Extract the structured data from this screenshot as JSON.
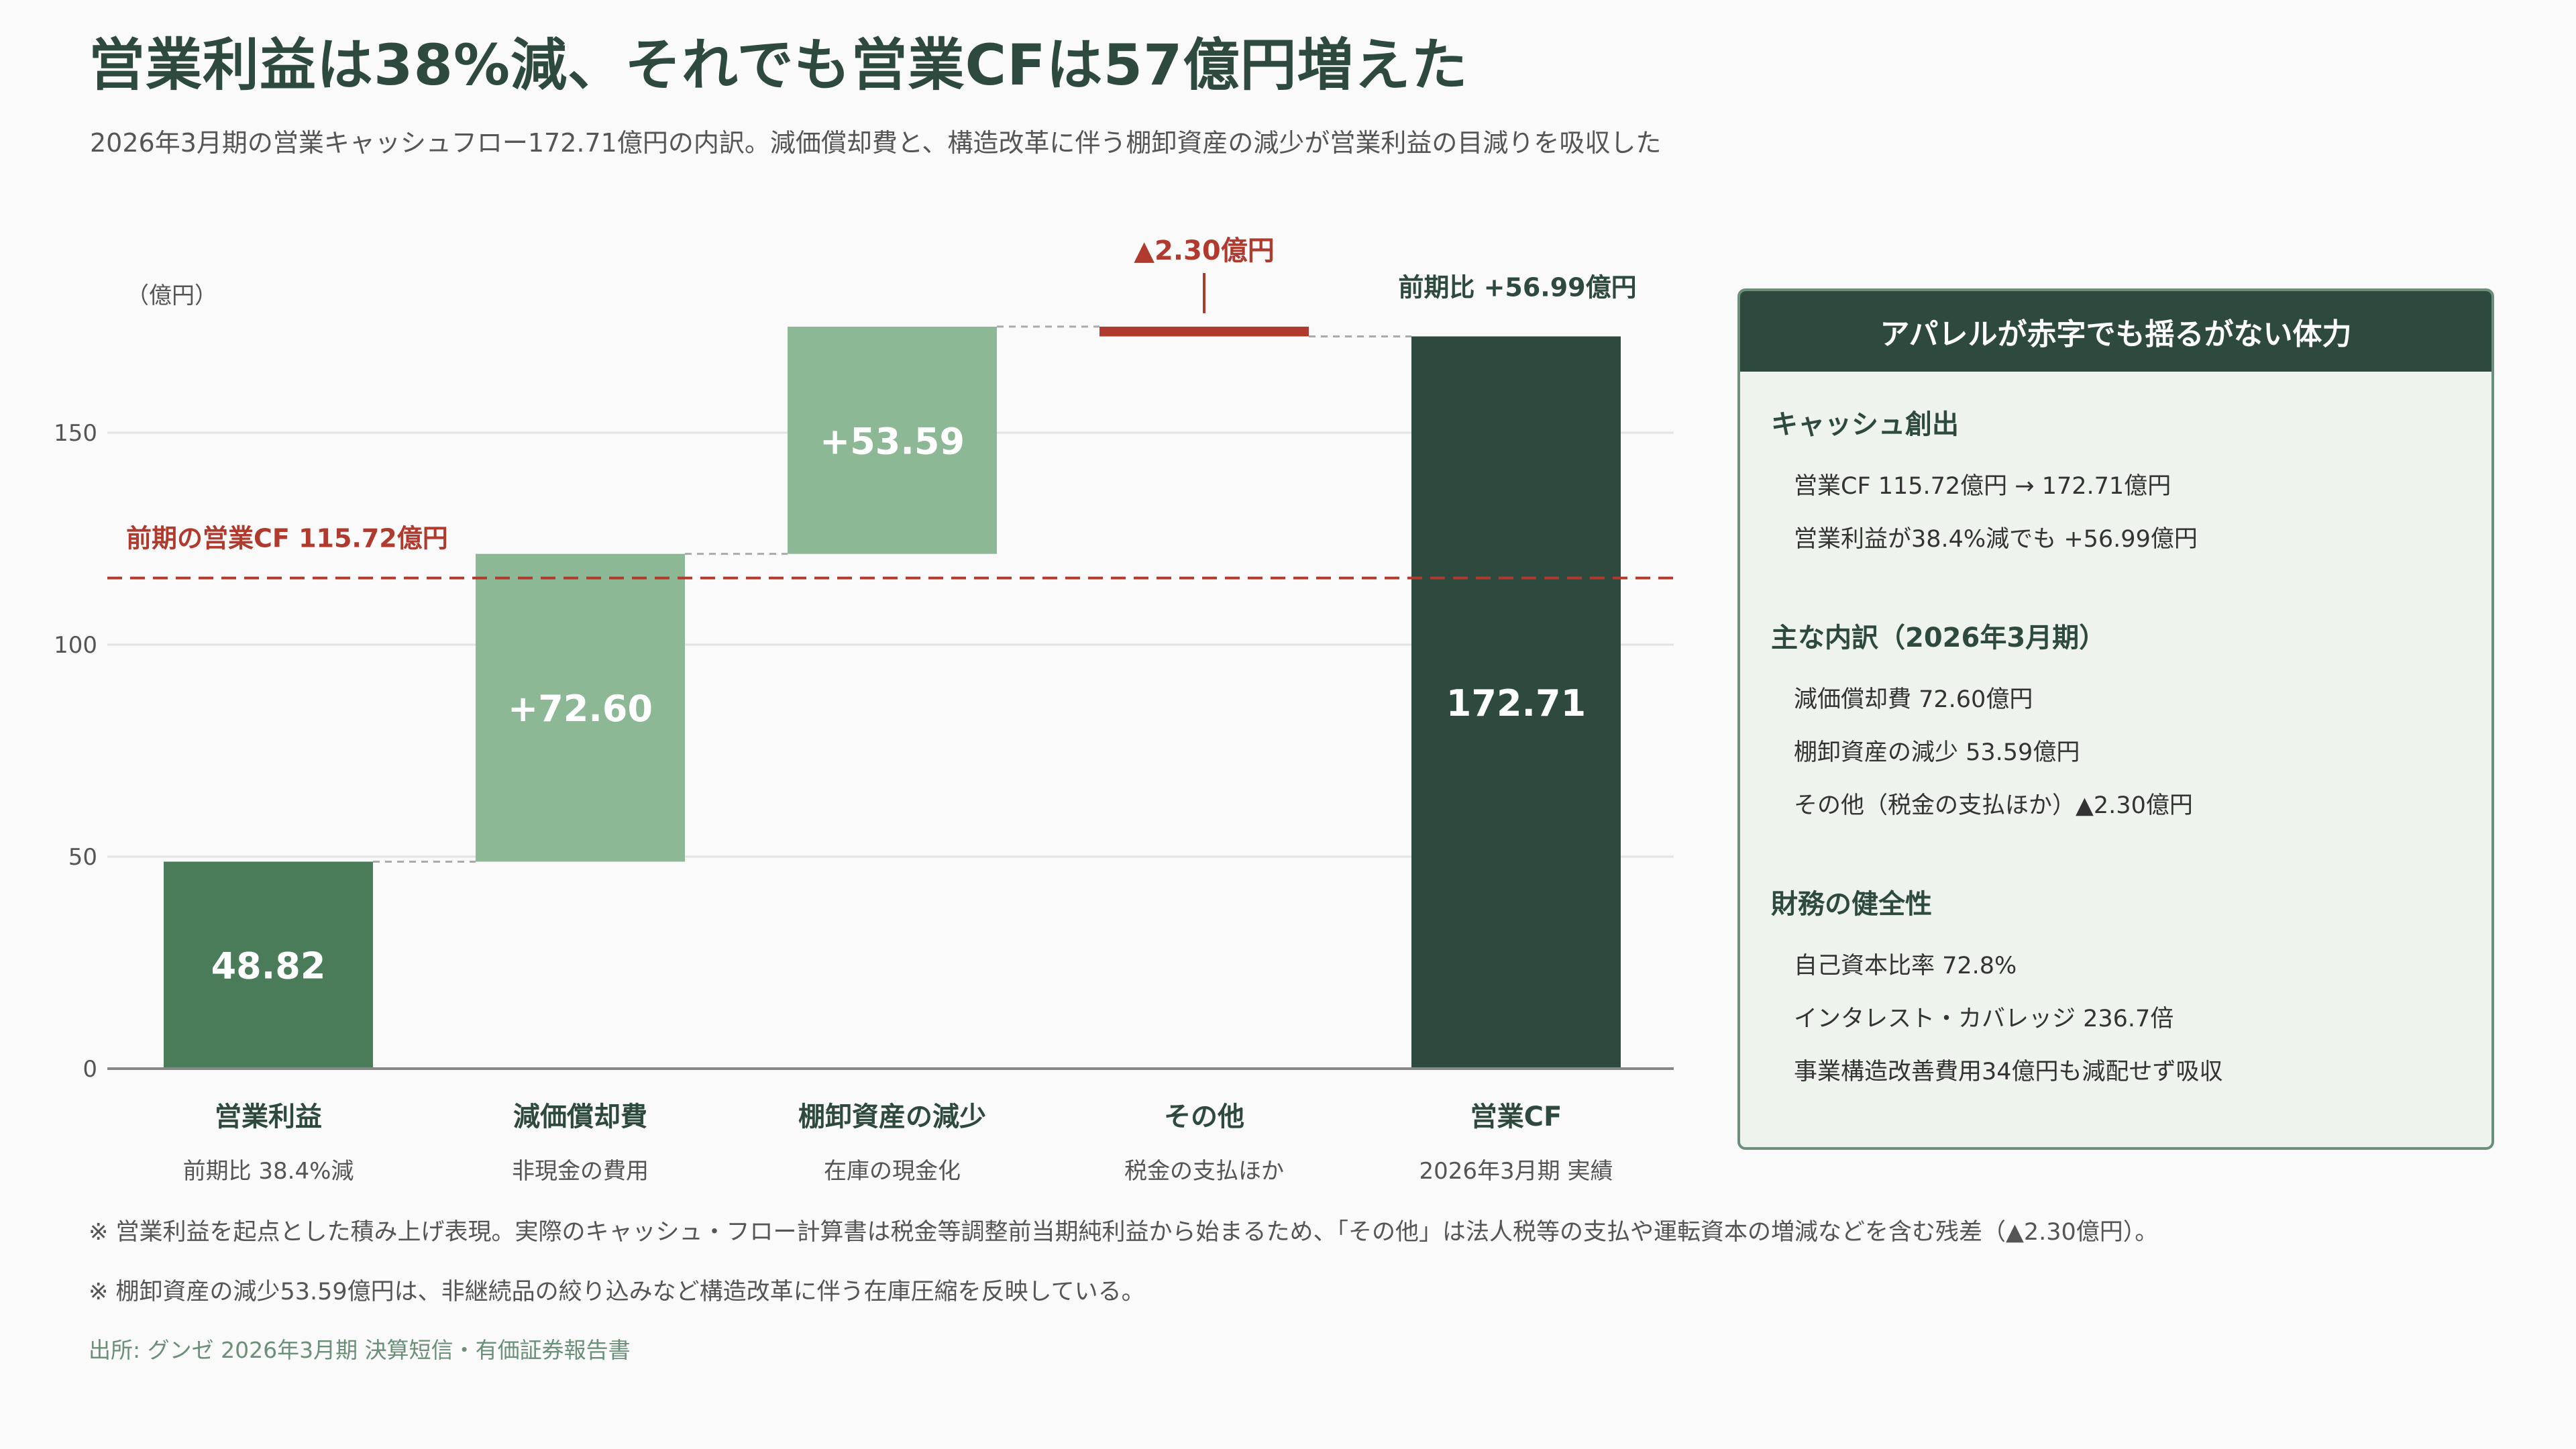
{
  "title": "営業利益は38%減、それでも営業CFは57億円増えた",
  "subtitle": "2026年3月期の営業キャッシュフロー172.71億円の内訳。減価償却費と、構造改革に伴う棚卸資産の減少が営業利益の目減りを吸収した",
  "colors": {
    "dark_green": "#2e4a3e",
    "mid_green": "#4a7c59",
    "light_green": "#8db896",
    "red": "#b03a2e"
  },
  "chart_data": {
    "type": "waterfall",
    "unit_label": "（億円）",
    "ylim": [
      0,
      175
    ],
    "yticks": [
      0,
      50,
      100,
      150
    ],
    "grid": true,
    "steps": [
      {
        "name": "営業利益",
        "sub": "前期比 38.4%減",
        "kind": "total",
        "start": 0,
        "end": 48.82,
        "label": "48.82",
        "color": "#4a7c59"
      },
      {
        "name": "減価償却費",
        "sub": "非現金の費用",
        "kind": "increase",
        "start": 48.82,
        "end": 121.42,
        "label": "+72.60",
        "color": "#8db896"
      },
      {
        "name": "棚卸資産の減少",
        "sub": "在庫の現金化",
        "kind": "increase",
        "start": 121.42,
        "end": 175.01,
        "label": "+53.59",
        "color": "#8db896"
      },
      {
        "name": "その他",
        "sub": "税金の支払ほか",
        "kind": "decrease",
        "start": 175.01,
        "end": 172.71,
        "label": "▲2.30億円",
        "color": "#b03a2e"
      },
      {
        "name": "営業CF",
        "sub": "2026年3月期 実績",
        "kind": "total",
        "start": 0,
        "end": 172.71,
        "label": "172.71",
        "color": "#2e4a3e"
      }
    ],
    "reference_line": {
      "value": 115.72,
      "label": "前期の営業CF 115.72億円",
      "color": "#b03a2e"
    },
    "annotation": "前期比 +56.99億円"
  },
  "panel": {
    "title": "アパレルが赤字でも揺るがない体力",
    "sections": [
      {
        "title": "キャッシュ創出",
        "items": [
          "営業CF 115.72億円 → 172.71億円",
          "営業利益が38.4%減でも +56.99億円"
        ]
      },
      {
        "title": "主な内訳（2026年3月期）",
        "items": [
          "減価償却費 72.60億円",
          "棚卸資産の減少 53.59億円",
          "その他（税金の支払ほか）▲2.30億円"
        ]
      },
      {
        "title": "財務の健全性",
        "items": [
          "自己資本比率 72.8%",
          "インタレスト・カバレッジ 236.7倍",
          "事業構造改善費用34億円も減配せず吸収"
        ]
      }
    ]
  },
  "notes": [
    "※ 営業利益を起点とした積み上げ表現。実際のキャッシュ・フロー計算書は税金等調整前当期純利益から始まるため、「その他」は法人税等の支払や運転資本の増減などを含む残差（▲2.30億円）。",
    "※ 棚卸資産の減少53.59億円は、非継続品の絞り込みなど構造改革に伴う在庫圧縮を反映している。"
  ],
  "source": "出所: グンゼ 2026年3月期 決算短信・有価証券報告書"
}
